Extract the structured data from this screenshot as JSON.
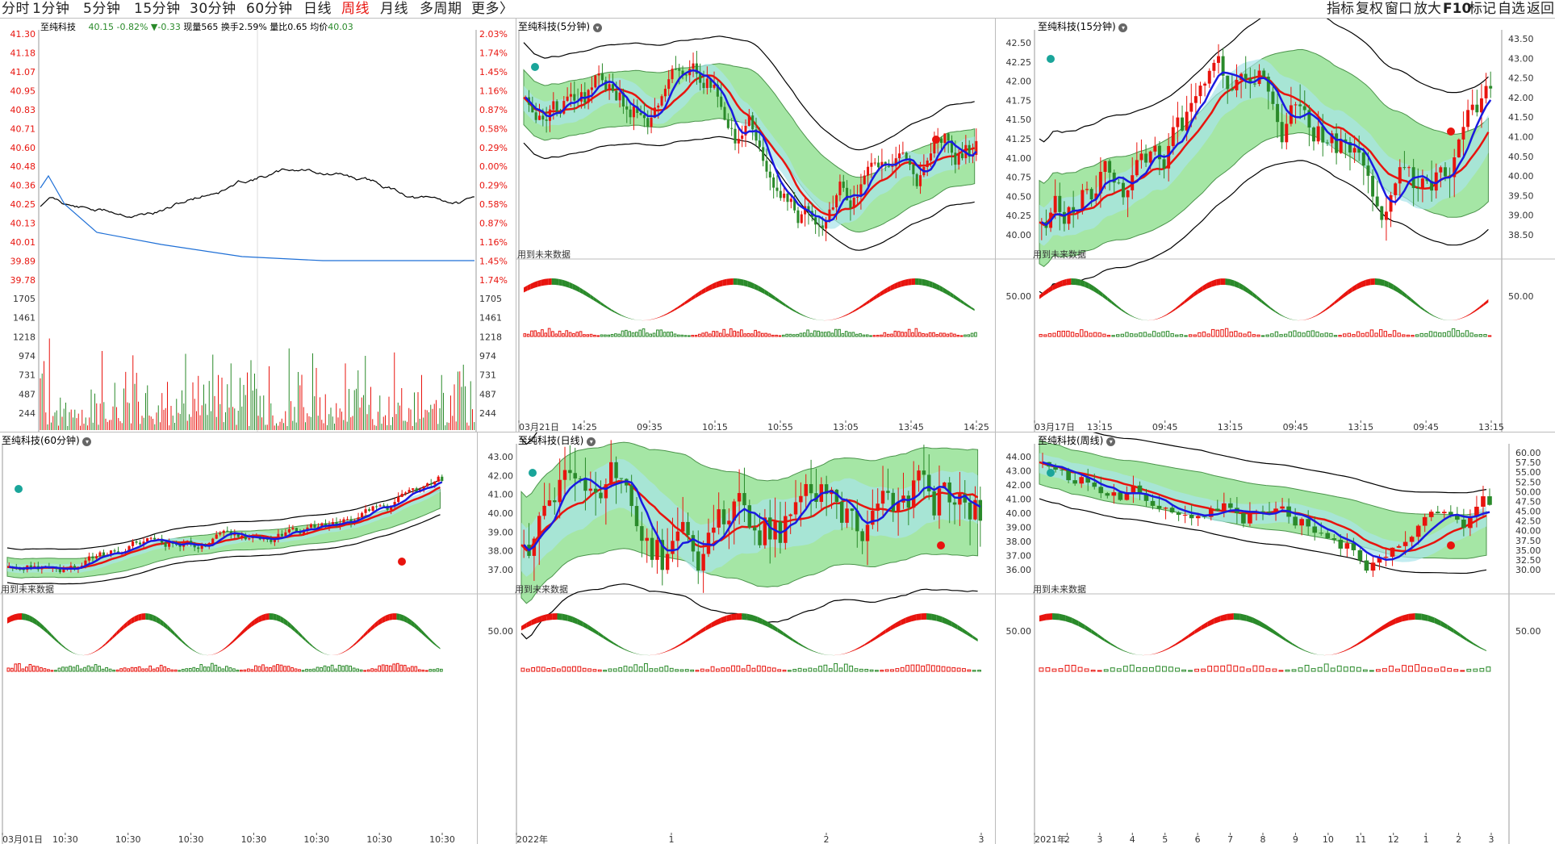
{
  "toolbar": {
    "periods": [
      "分时",
      "1分钟",
      "5分钟",
      "15分钟",
      "30分钟",
      "60分钟",
      "日线",
      "周线",
      "月线",
      "多周期",
      "更多〉"
    ],
    "selected_period": "周线",
    "right_buttons": [
      "指标",
      "复权",
      "窗口",
      "放大",
      "F10",
      "标记",
      "自选",
      "返回"
    ]
  },
  "colors": {
    "up": "#e8140e",
    "down": "#2a8a2a",
    "price_line": "#000000",
    "avg_line": "#1e6fd6",
    "band_green": "#8fe08f",
    "band_cyan": "#a8e4ea",
    "zigzag": "#1a1ae0"
  },
  "intraday": {
    "stock_name": "至纯科技",
    "price": "40.15",
    "change_pct": "-0.82%",
    "change": "▼-0.33",
    "volume_label": "现量",
    "volume": "565",
    "turnover_label": "换手",
    "turnover": "2.59%",
    "ratio_label": "量比",
    "ratio": "0.65",
    "avg_label": "均价",
    "avg": "40.03",
    "price_ticks": [
      "41.30",
      "41.18",
      "41.07",
      "40.95",
      "40.83",
      "40.71",
      "40.60",
      "40.48",
      "40.36",
      "40.25",
      "40.13",
      "40.01",
      "39.89",
      "39.78"
    ],
    "pct_ticks": [
      "2.03%",
      "1.74%",
      "1.45%",
      "1.16%",
      "0.87%",
      "0.58%",
      "0.29%",
      "0.00%",
      "0.29%",
      "0.58%",
      "0.87%",
      "1.16%",
      "1.45%",
      "1.74%"
    ],
    "vol_ticks": [
      "1705",
      "1461",
      "1218",
      "974",
      "731",
      "487",
      "244"
    ]
  },
  "panels": {
    "m5": {
      "title": "至纯科技(5分钟)",
      "future_label": "用到未来数据",
      "x_labels": [
        "03月21日",
        "14:25",
        "09:35",
        "10:15",
        "10:55",
        "13:05",
        "13:45",
        "14:25"
      ],
      "y_labels": []
    },
    "m15": {
      "title": "至纯科技(15分钟)",
      "future_label": "用到未来数据",
      "x_labels": [
        "03月17日",
        "13:15",
        "09:45",
        "13:15",
        "09:45",
        "13:15",
        "09:45",
        "13:15"
      ],
      "y_left": [
        "42.50",
        "42.25",
        "42.00",
        "41.75",
        "41.50",
        "41.25",
        "41.00",
        "40.75",
        "40.50",
        "40.25",
        "40.00"
      ],
      "y_right": [
        "43.50",
        "43.00",
        "42.50",
        "42.00",
        "41.50",
        "41.00",
        "40.50",
        "40.00",
        "39.50",
        "39.00",
        "38.50"
      ],
      "osc_left": "50.00",
      "osc_right": "50.00"
    },
    "m60": {
      "title": "至纯科技(60分钟)",
      "future_label": "用到未来数据",
      "x_labels": [
        "03月01日",
        "10:30",
        "10:30",
        "10:30",
        "10:30",
        "10:30",
        "10:30",
        "10:30"
      ]
    },
    "day": {
      "title": "至纯科技(日线)",
      "future_label": "用到未来数据",
      "x_labels": [
        "2022年",
        "1",
        "2",
        "3"
      ],
      "y_left": [
        "43.00",
        "42.00",
        "41.00",
        "40.00",
        "39.00",
        "38.00",
        "37.00"
      ],
      "osc_left": "50.00"
    },
    "week": {
      "title": "至纯科技(周线)",
      "future_label": "用到未来数据",
      "x_labels": [
        "2021年",
        "2",
        "3",
        "4",
        "5",
        "6",
        "7",
        "8",
        "9",
        "10",
        "11",
        "12",
        "1",
        "2",
        "3"
      ],
      "y_left": [
        "44.00",
        "43.00",
        "42.00",
        "41.00",
        "40.00",
        "39.00",
        "38.00",
        "37.00",
        "36.00"
      ],
      "y_right": [
        "60.00",
        "57.50",
        "55.00",
        "52.50",
        "50.00",
        "47.50",
        "45.00",
        "42.50",
        "40.00",
        "37.50",
        "35.00",
        "32.50",
        "30.00"
      ],
      "osc_left": "50.00",
      "osc_right": "50.00"
    }
  }
}
